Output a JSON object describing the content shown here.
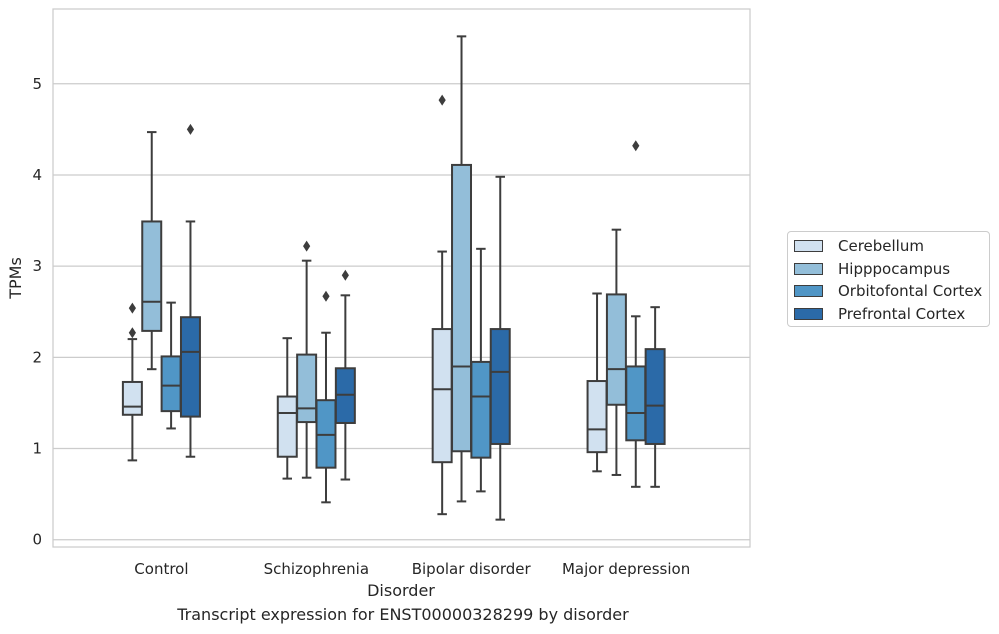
{
  "caption": "Transcript expression for ENST00000328299 by disorder",
  "chart_data": {
    "type": "box",
    "xlabel": "Disorder",
    "ylabel": "TPMs",
    "categories": [
      "Control",
      "Schizophrenia",
      "Bipolar disorder",
      "Major depression"
    ],
    "ylim": [
      -0.08,
      5.82
    ],
    "yticks": [
      "0",
      "1",
      "2",
      "3",
      "4",
      "5"
    ],
    "grid": "horizontal",
    "legend_position": "center-right",
    "series": [
      {
        "name": "Cerebellum",
        "color": "#d1e1f0",
        "boxes": [
          {
            "whisker_low": 0.87,
            "q1": 1.37,
            "median": 1.46,
            "q3": 1.73,
            "whisker_high": 2.2,
            "outliers": [
              2.27,
              2.54
            ]
          },
          {
            "whisker_low": 0.67,
            "q1": 0.91,
            "median": 1.39,
            "q3": 1.57,
            "whisker_high": 2.21,
            "outliers": []
          },
          {
            "whisker_low": 0.28,
            "q1": 0.85,
            "median": 1.65,
            "q3": 2.31,
            "whisker_high": 3.16,
            "outliers": [
              4.82
            ]
          },
          {
            "whisker_low": 0.75,
            "q1": 0.96,
            "median": 1.21,
            "q3": 1.74,
            "whisker_high": 2.7,
            "outliers": []
          }
        ]
      },
      {
        "name": "Hipppocampus",
        "color": "#93bed9",
        "boxes": [
          {
            "whisker_low": 1.87,
            "q1": 2.29,
            "median": 2.61,
            "q3": 3.49,
            "whisker_high": 4.47,
            "outliers": []
          },
          {
            "whisker_low": 0.68,
            "q1": 1.29,
            "median": 1.44,
            "q3": 2.03,
            "whisker_high": 3.06,
            "outliers": [
              3.22
            ]
          },
          {
            "whisker_low": 0.42,
            "q1": 0.97,
            "median": 1.9,
            "q3": 4.11,
            "whisker_high": 5.52,
            "outliers": []
          },
          {
            "whisker_low": 0.71,
            "q1": 1.48,
            "median": 1.87,
            "q3": 2.69,
            "whisker_high": 3.4,
            "outliers": []
          }
        ]
      },
      {
        "name": "Orbitofontal Cortex",
        "color": "#5096c6",
        "boxes": [
          {
            "whisker_low": 1.22,
            "q1": 1.41,
            "median": 1.69,
            "q3": 2.01,
            "whisker_high": 2.6,
            "outliers": []
          },
          {
            "whisker_low": 0.41,
            "q1": 0.79,
            "median": 1.15,
            "q3": 1.53,
            "whisker_high": 2.27,
            "outliers": [
              2.67
            ]
          },
          {
            "whisker_low": 0.53,
            "q1": 0.9,
            "median": 1.57,
            "q3": 1.95,
            "whisker_high": 3.19,
            "outliers": []
          },
          {
            "whisker_low": 0.58,
            "q1": 1.09,
            "median": 1.39,
            "q3": 1.9,
            "whisker_high": 2.45,
            "outliers": [
              4.32
            ]
          }
        ]
      },
      {
        "name": "Prefrontal Cortex",
        "color": "#2b6aa8",
        "boxes": [
          {
            "whisker_low": 0.91,
            "q1": 1.35,
            "median": 2.06,
            "q3": 2.44,
            "whisker_high": 3.49,
            "outliers": [
              4.5
            ]
          },
          {
            "whisker_low": 0.66,
            "q1": 1.28,
            "median": 1.59,
            "q3": 1.88,
            "whisker_high": 2.68,
            "outliers": [
              2.9
            ]
          },
          {
            "whisker_low": 0.22,
            "q1": 1.05,
            "median": 1.84,
            "q3": 2.31,
            "whisker_high": 3.98,
            "outliers": []
          },
          {
            "whisker_low": 0.58,
            "q1": 1.05,
            "median": 1.47,
            "q3": 2.09,
            "whisker_high": 2.55,
            "outliers": []
          }
        ]
      }
    ]
  }
}
